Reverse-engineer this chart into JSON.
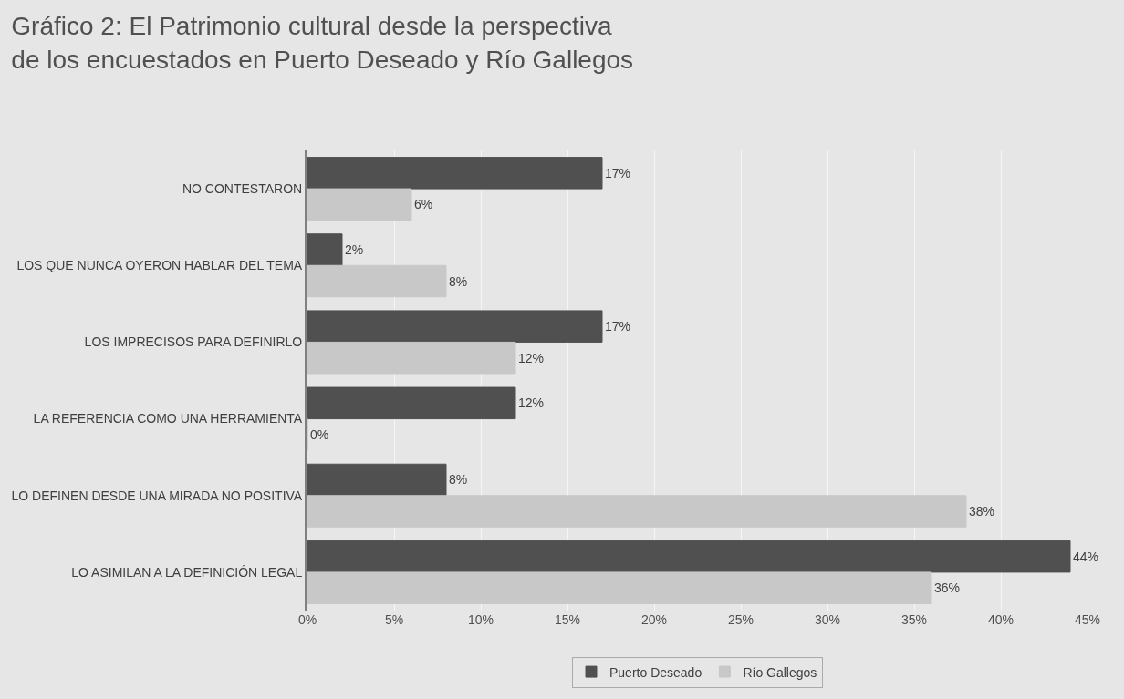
{
  "chart_data": {
    "type": "bar",
    "orientation": "horizontal",
    "title": "Gráfico 2: El Patrimonio cultural desde la perspectiva\nde los encuestados en Puerto Deseado y Río Gallegos",
    "categories": [
      "NO CONTESTARON",
      "LOS QUE NUNCA OYERON HABLAR DEL TEMA",
      "LOS IMPRECISOS PARA DEFINIRLO",
      "LA REFERENCIA COMO UNA HERRAMIENTA",
      "LO DEFINEN DESDE UNA MIRADA NO POSITIVA",
      "LO ASIMILAN A LA DEFINICIÓN LEGAL"
    ],
    "series": [
      {
        "name": "Puerto Deseado",
        "color": "#505050",
        "values": [
          17,
          2,
          17,
          12,
          8,
          44
        ],
        "value_labels": [
          "17%",
          "2%",
          "17%",
          "12%",
          "8%",
          "44%"
        ]
      },
      {
        "name": "Río Gallegos",
        "color": "#c8c8c8",
        "values": [
          6,
          8,
          12,
          0,
          38,
          36
        ],
        "value_labels": [
          "6%",
          "8%",
          "12%",
          "0%",
          "38%",
          "36%"
        ]
      }
    ],
    "xlim": [
      0,
      45
    ],
    "xticks": [
      {
        "value": 0,
        "label": "0%"
      },
      {
        "value": 5,
        "label": "5%"
      },
      {
        "value": 10,
        "label": "10%"
      },
      {
        "value": 15,
        "label": "15%"
      },
      {
        "value": 20,
        "label": "20%"
      },
      {
        "value": 25,
        "label": "25%"
      },
      {
        "value": 30,
        "label": "30%"
      },
      {
        "value": 35,
        "label": "35%"
      },
      {
        "value": 40,
        "label": "40%"
      },
      {
        "value": 45,
        "label": "45%"
      }
    ],
    "grid": "x",
    "legend": "bottom"
  }
}
